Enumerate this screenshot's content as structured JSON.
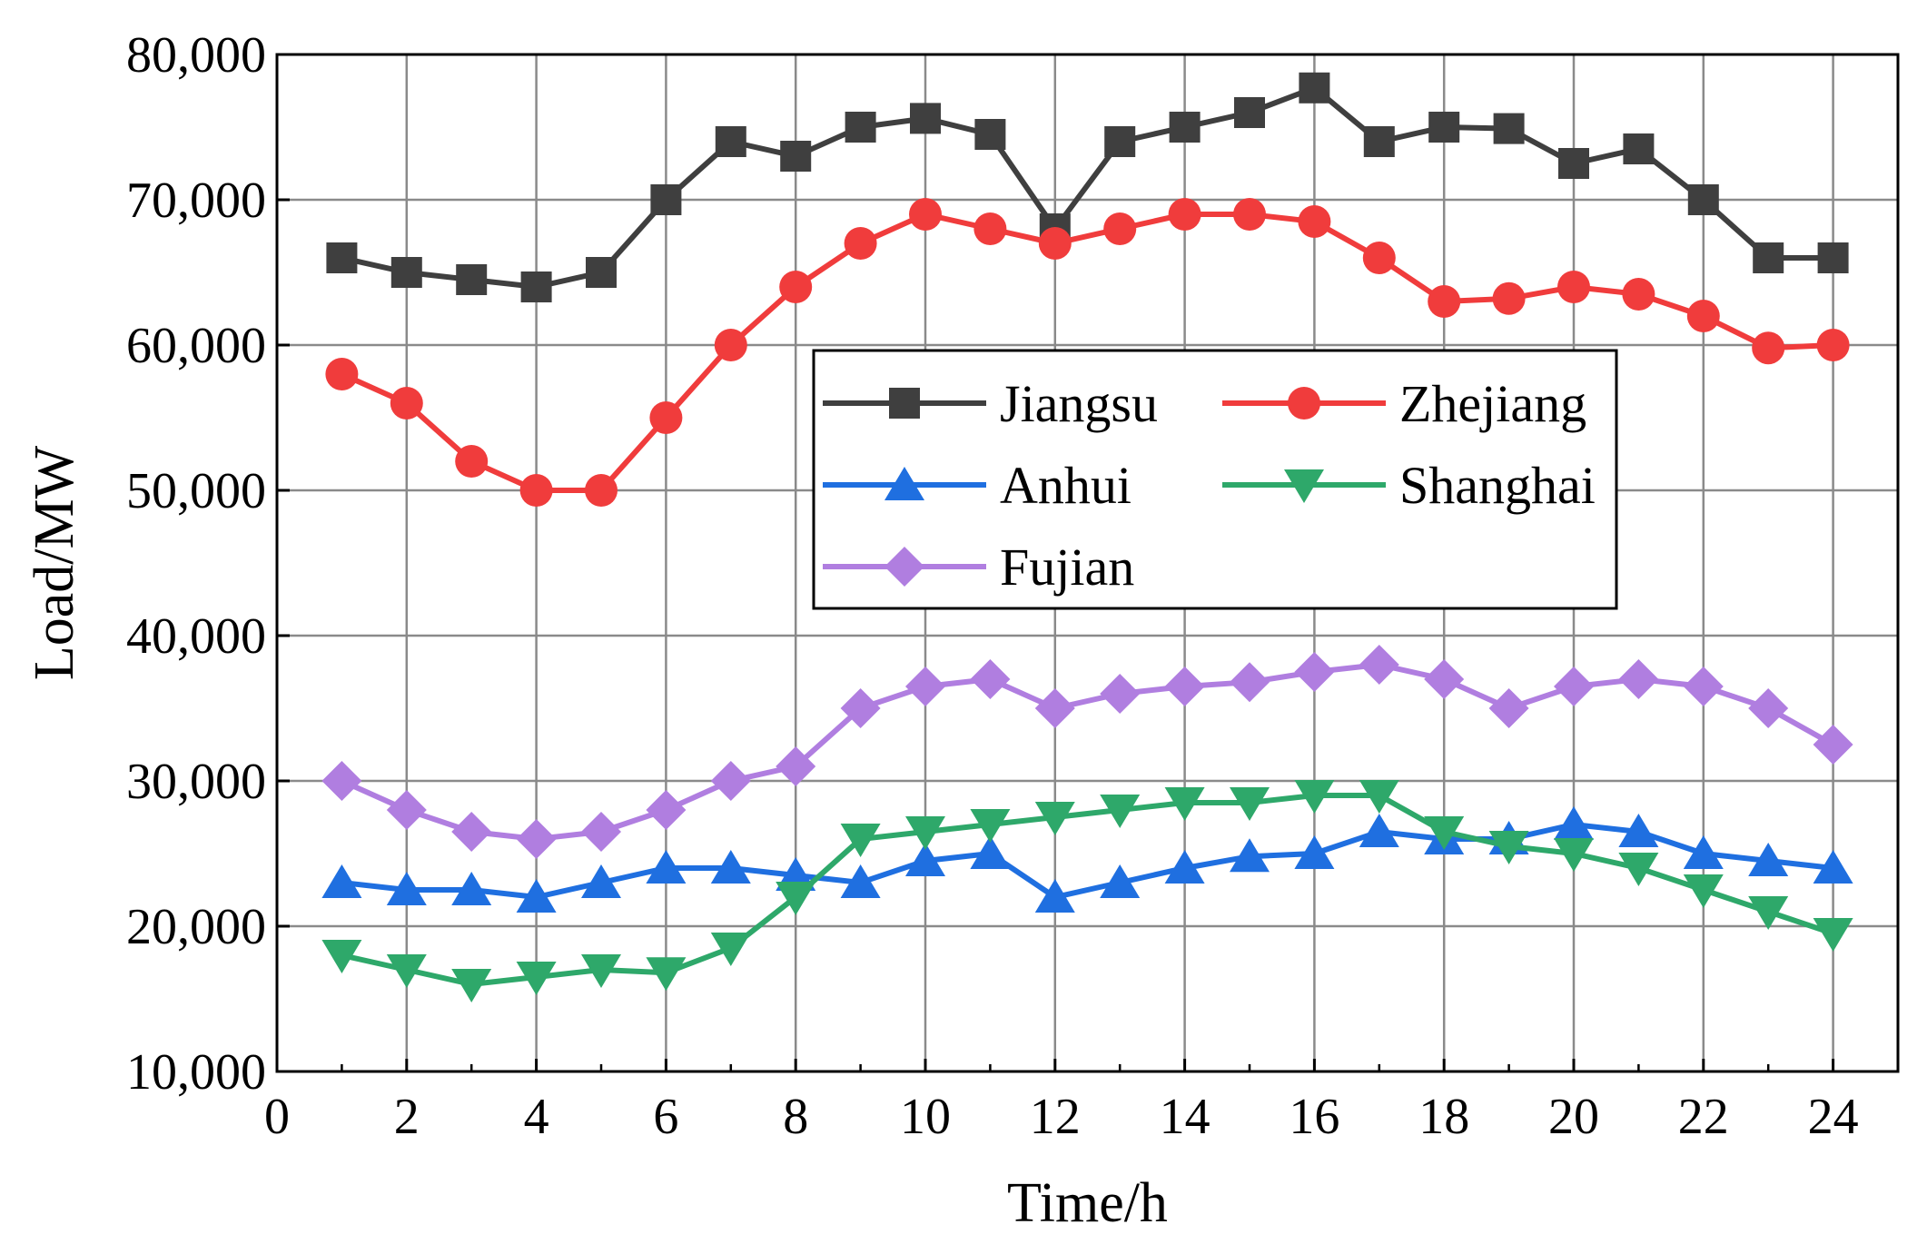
{
  "chart_data": {
    "type": "line",
    "title": "",
    "xlabel": "Time/h",
    "ylabel": "Load/MW",
    "xlim": [
      0,
      25
    ],
    "ylim": [
      10000,
      80000
    ],
    "xticks": [
      0,
      2,
      4,
      6,
      8,
      10,
      12,
      14,
      16,
      18,
      20,
      22,
      24
    ],
    "xtick_labels": [
      "0",
      "2",
      "4",
      "6",
      "8",
      "10",
      "12",
      "14",
      "16",
      "18",
      "20",
      "22",
      "24"
    ],
    "yticks": [
      10000,
      20000,
      30000,
      40000,
      50000,
      60000,
      70000,
      80000
    ],
    "ytick_labels": [
      "10,000",
      "20,000",
      "30,000",
      "40,000",
      "50,000",
      "60,000",
      "70,000",
      "80,000"
    ],
    "grid": true,
    "legend_position": "center",
    "x": [
      1,
      2,
      3,
      4,
      5,
      6,
      7,
      8,
      9,
      10,
      11,
      12,
      13,
      14,
      15,
      16,
      17,
      18,
      19,
      20,
      21,
      22,
      23,
      24
    ],
    "series": [
      {
        "name": "Jiangsu",
        "color": "#3f3f3f",
        "marker": "square",
        "values": [
          66000,
          65000,
          64500,
          64000,
          65000,
          70000,
          74000,
          73000,
          75000,
          75600,
          74500,
          68000,
          74000,
          75000,
          76000,
          77700,
          74000,
          75000,
          74900,
          72500,
          73500,
          70000,
          66000,
          66000
        ]
      },
      {
        "name": "Zhejiang",
        "color": "#f03c3c",
        "marker": "circle",
        "values": [
          58000,
          56000,
          52000,
          50000,
          50000,
          55000,
          60000,
          64000,
          67000,
          69000,
          68000,
          67000,
          68000,
          69000,
          69000,
          68500,
          66000,
          63000,
          63200,
          64000,
          63500,
          62000,
          59800,
          60000
        ]
      },
      {
        "name": "Anhui",
        "color": "#1f6fe0",
        "marker": "triangle-up",
        "values": [
          23000,
          22500,
          22500,
          22000,
          23000,
          24000,
          24000,
          23500,
          23000,
          24500,
          25000,
          22000,
          23000,
          24000,
          24800,
          25000,
          26500,
          26000,
          26000,
          27000,
          26500,
          25000,
          24500,
          24000
        ]
      },
      {
        "name": "Shanghai",
        "color": "#2ea86a",
        "marker": "triangle-down",
        "values": [
          18000,
          17000,
          16000,
          16500,
          17000,
          16800,
          18500,
          22000,
          26000,
          26500,
          27000,
          27500,
          28000,
          28500,
          28500,
          29000,
          29000,
          26500,
          25500,
          25000,
          24000,
          22500,
          21000,
          19500
        ]
      },
      {
        "name": "Fujian",
        "color": "#b07ee0",
        "marker": "diamond",
        "values": [
          30000,
          28000,
          26500,
          26000,
          26500,
          28000,
          30000,
          31000,
          35000,
          36500,
          37000,
          35000,
          36000,
          36500,
          36800,
          37500,
          38000,
          37000,
          35000,
          36500,
          37000,
          36500,
          35000,
          32500
        ]
      }
    ]
  }
}
